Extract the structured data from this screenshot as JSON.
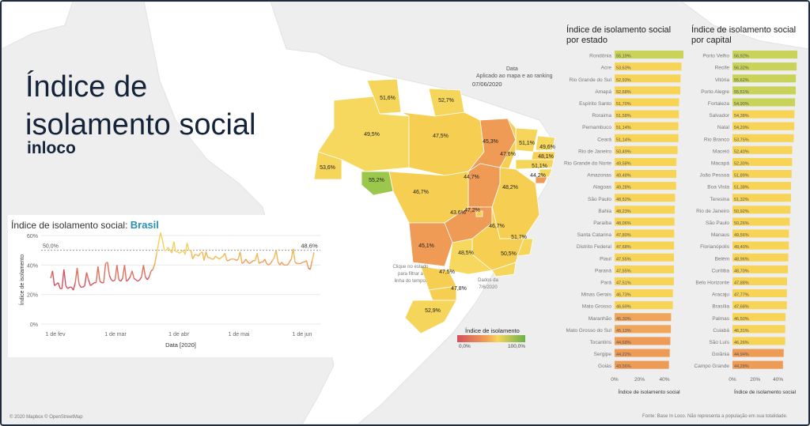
{
  "header": {
    "title": "Índice de isolamento social",
    "brand": "inloco"
  },
  "map": {
    "date_title": "Data",
    "date_subtitle": "Aplicado ao mapa e ao ranking",
    "date_value": "07/06/2020",
    "hint_click": "Clique no estado para filtrar a linha do tempo.",
    "hint_data": "Dados da 7/6/2020",
    "legend_title": "Índice de isolamento",
    "legend_min": "0,0%",
    "legend_max": "100,0%",
    "region_labels": [
      "51,6%",
      "52,7%",
      "49,5%",
      "47,5%",
      "45,3%",
      "51,1%",
      "49,6%",
      "47,6%",
      "48,1%",
      "51,1%",
      "44,2%",
      "53,6%",
      "55,2%",
      "46,7%",
      "44,7%",
      "48,2%",
      "43,6%",
      "47,2%",
      "46,7%",
      "51,7%",
      "45,1%",
      "48,5%",
      "50,5%",
      "47,5%",
      "47,8%",
      "52,9%"
    ],
    "colors": {
      "high": "#9cc74d",
      "mid_high": "#f5d55a",
      "mid": "#f6c84b",
      "low": "#ef9a55",
      "lowest": "#d64e5e"
    }
  },
  "footer": {
    "left": "© 2020 Mapbox © OpenStreetMap",
    "right": "Fonte: Base In Loco. Não representa a população em sua totalidade."
  },
  "line_chart_title": {
    "prefix": "Índice de isolamento social:",
    "place": "Brasil"
  },
  "bar_titles": {
    "states": "Índice de isolamento social por estado",
    "capitals": "Índice de isolamento social por capital"
  },
  "chart_data": [
    {
      "type": "line",
      "title": "Índice de isolamento social: Brasil",
      "xlabel": "Data [2020]",
      "ylabel": "Índice de isolamento",
      "ylim": [
        0,
        60
      ],
      "yticks": [
        "0%",
        "20%",
        "40%",
        "60%"
      ],
      "xticks": [
        "1 de fev",
        "1 de mar",
        "1 de abr",
        "1 de mai",
        "1 de jun"
      ],
      "reference_line": {
        "label": "50,0%",
        "value": 50
      },
      "end_label": "48,6%",
      "series": [
        {
          "values": [
            31,
            36,
            26,
            27,
            28,
            24,
            24,
            37,
            26,
            24,
            25,
            25,
            23,
            28,
            38,
            27,
            25,
            25,
            26,
            35,
            30,
            26,
            27,
            28,
            28,
            39,
            29,
            28,
            28,
            41,
            42,
            33,
            30,
            29,
            30,
            40,
            30,
            29,
            31,
            40,
            29,
            30,
            32,
            36,
            31,
            30,
            29,
            30,
            32,
            40,
            32,
            30,
            32,
            36,
            37,
            41,
            48,
            55,
            62,
            57,
            50,
            50,
            52,
            50,
            48,
            56,
            49,
            49,
            48,
            49,
            50,
            47,
            55,
            50,
            50,
            44,
            47,
            47,
            46,
            48,
            49,
            43,
            49,
            45,
            45,
            44,
            44,
            46,
            45,
            44,
            45,
            46,
            48,
            43,
            43,
            44,
            44,
            44,
            43,
            44,
            49,
            41,
            42,
            44,
            42,
            41,
            42,
            43,
            43,
            48,
            41,
            42,
            42,
            44,
            41,
            40,
            41,
            43,
            45,
            50,
            42,
            40,
            42,
            40,
            40,
            40,
            42,
            44,
            51,
            42,
            41,
            41,
            41,
            42,
            42,
            43,
            38,
            37,
            43,
            48.6
          ]
        }
      ]
    },
    {
      "type": "bar",
      "title": "Índice de isolamento social por estado",
      "xlabel": "Índice de isolamento social",
      "xticks": [
        "0%",
        "20%",
        "40%"
      ],
      "xlim": [
        0,
        55.19
      ],
      "categories": [
        "Rondônia",
        "Acre",
        "Rio Grande do Sul",
        "Amapá",
        "Espírito Santo",
        "Roraima",
        "Pernambuco",
        "Ceará",
        "Rio de Janeiro",
        "Rio Grande do Norte",
        "Amazonas",
        "Alagoas",
        "São Paulo",
        "Bahia",
        "Paraíba",
        "Santa Catarina",
        "Distrito Federal",
        "Piauí",
        "Paraná",
        "Pará",
        "Minas Gerais",
        "Mato Grosso",
        "Maranhão",
        "Mato Grosso do Sul",
        "Tocantins",
        "Sergipe",
        "Goiás"
      ],
      "labels": [
        "55,19%",
        "53,63%",
        "52,93%",
        "52,68%",
        "51,70%",
        "51,58%",
        "51,14%",
        "51,14%",
        "50,49%",
        "49,58%",
        "49,48%",
        "49,28%",
        "48,52%",
        "48,23%",
        "48,06%",
        "47,80%",
        "47,68%",
        "47,55%",
        "47,55%",
        "47,51%",
        "46,73%",
        "46,69%",
        "45,30%",
        "45,13%",
        "44,68%",
        "44,22%",
        "43,56%"
      ],
      "values": [
        55.19,
        53.63,
        52.93,
        52.68,
        51.7,
        51.58,
        51.14,
        51.14,
        50.49,
        49.58,
        49.48,
        49.28,
        48.52,
        48.23,
        48.06,
        47.8,
        47.68,
        47.55,
        47.55,
        47.51,
        46.73,
        46.69,
        45.3,
        45.13,
        44.68,
        44.22,
        43.56
      ]
    },
    {
      "type": "bar",
      "title": "Índice de isolamento social por capital",
      "xlabel": "Índice de isolamento social",
      "xticks": [
        "0%",
        "20%",
        "40%"
      ],
      "xlim": [
        0,
        56.92
      ],
      "categories": [
        "Porto Velho",
        "Recife",
        "Vitória",
        "Porto Alegre",
        "Fortaleza",
        "Salvador",
        "Natal",
        "Rio Branco",
        "Maceió",
        "Macapá",
        "João Pessoa",
        "Boa Vista",
        "Teresina",
        "Rio de Janeiro",
        "São Paulo",
        "Manaus",
        "Florianópolis",
        "Belém",
        "Curitiba",
        "Belo Horizonte",
        "Aracaju",
        "Brasília",
        "Palmas",
        "Cuiabá",
        "São Luís",
        "Goiânia",
        "Campo Grande"
      ],
      "labels": [
        "56,92%",
        "56,32%",
        "55,62%",
        "55,51%",
        "54,90%",
        "54,38%",
        "54,20%",
        "53,75%",
        "52,40%",
        "52,30%",
        "51,89%",
        "51,38%",
        "51,32%",
        "50,92%",
        "50,26%",
        "49,56%",
        "49,40%",
        "48,96%",
        "48,70%",
        "47,88%",
        "47,77%",
        "47,68%",
        "46,50%",
        "46,31%",
        "46,26%",
        "44,94%",
        "44,28%"
      ],
      "values": [
        56.92,
        56.32,
        55.62,
        55.51,
        54.9,
        54.38,
        54.2,
        53.75,
        52.4,
        52.3,
        51.89,
        51.38,
        51.32,
        50.92,
        50.26,
        49.56,
        49.4,
        48.96,
        48.7,
        47.88,
        47.77,
        47.68,
        46.5,
        46.31,
        46.26,
        44.94,
        44.28
      ]
    }
  ]
}
